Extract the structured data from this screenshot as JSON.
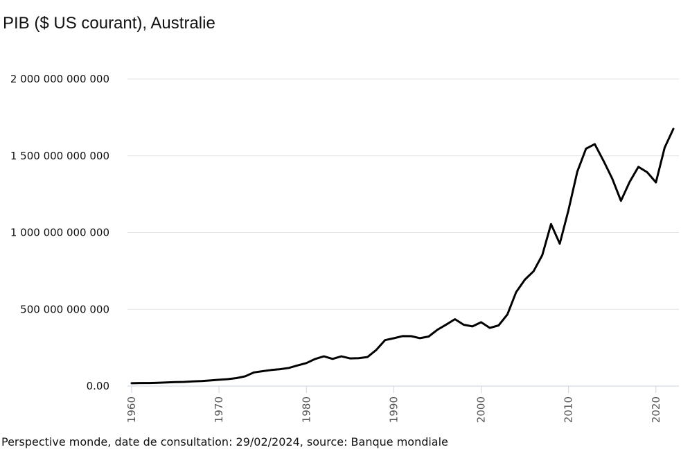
{
  "chart_data": {
    "type": "line",
    "title": "PIB ($ US courant), Australie",
    "xlabel": "",
    "ylabel": "",
    "xlim": [
      1960,
      2022
    ],
    "ylim": [
      0,
      2000000000000
    ],
    "grid": true,
    "y_ticks": [
      {
        "value": 0,
        "label": "0.00"
      },
      {
        "value": 500000000000,
        "label": "500 000 000 000"
      },
      {
        "value": 1000000000000,
        "label": "1 000 000 000 000"
      },
      {
        "value": 1500000000000,
        "label": "1 500 000 000 000"
      },
      {
        "value": 2000000000000,
        "label": "2 000 000 000 000"
      }
    ],
    "x_ticks": [
      {
        "value": 1960,
        "label": "1960"
      },
      {
        "value": 1970,
        "label": "1970"
      },
      {
        "value": 1980,
        "label": "1980"
      },
      {
        "value": 1990,
        "label": "1990"
      },
      {
        "value": 2000,
        "label": "2000"
      },
      {
        "value": 2010,
        "label": "2010"
      },
      {
        "value": 2020,
        "label": "2020"
      }
    ],
    "series": [
      {
        "color": "#000000",
        "x": [
          1960,
          1961,
          1962,
          1963,
          1964,
          1965,
          1966,
          1967,
          1968,
          1969,
          1970,
          1971,
          1972,
          1973,
          1974,
          1975,
          1976,
          1977,
          1978,
          1979,
          1980,
          1981,
          1982,
          1983,
          1984,
          1985,
          1986,
          1987,
          1988,
          1989,
          1990,
          1991,
          1992,
          1993,
          1994,
          1995,
          1996,
          1997,
          1998,
          1999,
          2000,
          2001,
          2002,
          2003,
          2004,
          2005,
          2006,
          2007,
          2008,
          2009,
          2010,
          2011,
          2012,
          2013,
          2014,
          2015,
          2016,
          2017,
          2018,
          2019,
          2020,
          2021,
          2022
        ],
        "y": [
          18600000000,
          19700000000,
          19900000000,
          21500000000,
          23800000000,
          25900000000,
          27300000000,
          30400000000,
          32700000000,
          36600000000,
          41300000000,
          45200000000,
          51900000000,
          63700000000,
          88800000000,
          97200000000,
          104800000000,
          110200000000,
          118300000000,
          134600000000,
          149800000000,
          176600000000,
          193800000000,
          177100000000,
          193500000000,
          180200000000,
          181900000000,
          189100000000,
          235700000000,
          299300000000,
          311400000000,
          325300000000,
          324900000000,
          312000000000,
          322800000000,
          367200000000,
          400300000000,
          435600000000,
          399600000000,
          388700000000,
          415900000000,
          378900000000,
          394900000000,
          466200000000,
          611900000000,
          693000000000,
          748200000000,
          853100000000,
          1055100000000,
          927800000000,
          1146100000000,
          1396600000000,
          1546200000000,
          1576200000000,
          1467500000000,
          1351500000000,
          1206800000000,
          1330100000000,
          1428200000000,
          1392700000000,
          1326900000000,
          1553100000000,
          1675400000000
        ]
      }
    ]
  },
  "footer": "Perspective monde, date de consultation: 29/02/2024, source: Banque mondiale"
}
